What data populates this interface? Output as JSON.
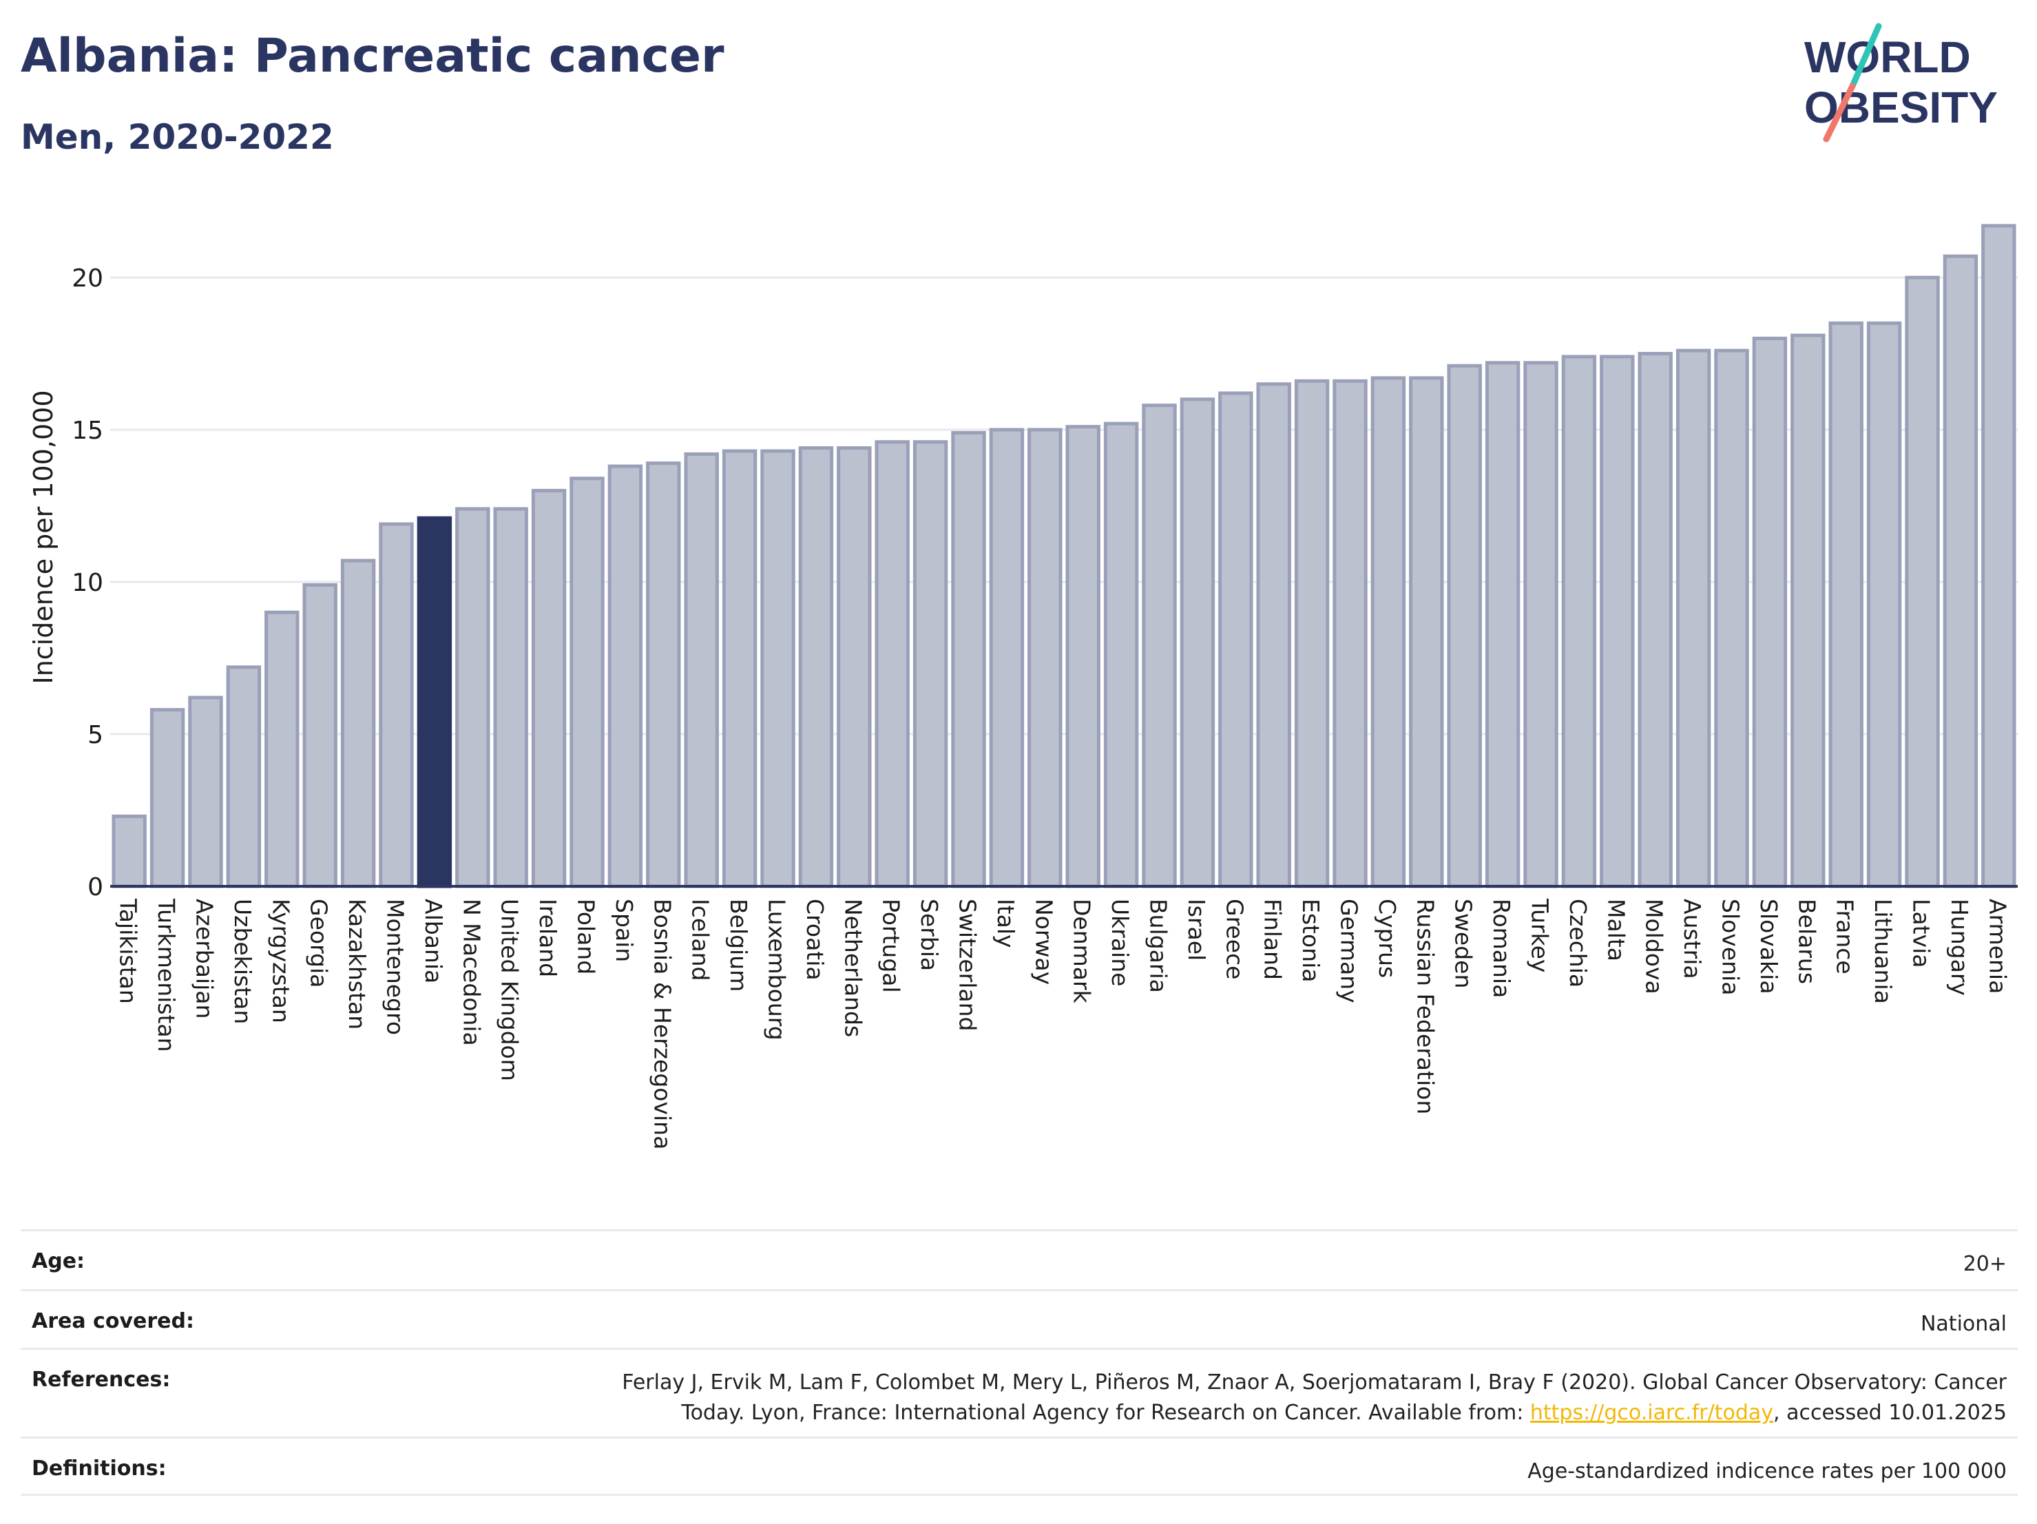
{
  "header": {
    "title": "Albania: Pancreatic cancer",
    "subtitle": "Men, 2020-2022",
    "logo_line1": "WORLD",
    "logo_line2": "OBESITY"
  },
  "colors": {
    "highlight": "#2b3562",
    "bar_fill": "#bcc1d0",
    "bar_stroke": "#9aa0b8",
    "title": "#2b3562",
    "link": "#f2b705",
    "logo_teal": "#2ec4b6",
    "logo_coral": "#f0776a"
  },
  "chart_data": {
    "type": "bar",
    "title": "",
    "xlabel": "",
    "ylabel": "Incidence per 100,000",
    "ylim": [
      0,
      22
    ],
    "yticks": [
      0,
      5,
      10,
      15,
      20
    ],
    "grid": true,
    "highlight": "Albania",
    "categories": [
      "Tajikistan",
      "Turkmenistan",
      "Azerbaijan",
      "Uzbekistan",
      "Kyrgyzstan",
      "Georgia",
      "Kazakhstan",
      "Montenegro",
      "Albania",
      "N Macedonia",
      "United Kingdom",
      "Ireland",
      "Poland",
      "Spain",
      "Bosnia & Herzegovina",
      "Iceland",
      "Belgium",
      "Luxembourg",
      "Croatia",
      "Netherlands",
      "Portugal",
      "Serbia",
      "Switzerland",
      "Italy",
      "Norway",
      "Denmark",
      "Ukraine",
      "Bulgaria",
      "Israel",
      "Greece",
      "Finland",
      "Estonia",
      "Germany",
      "Cyprus",
      "Russian Federation",
      "Sweden",
      "Romania",
      "Turkey",
      "Czechia",
      "Malta",
      "Moldova",
      "Austria",
      "Slovenia",
      "Slovakia",
      "Belarus",
      "France",
      "Lithuania",
      "Latvia",
      "Hungary",
      "Armenia"
    ],
    "values": [
      2.3,
      5.8,
      6.2,
      7.2,
      9.0,
      9.9,
      10.7,
      11.9,
      12.1,
      12.4,
      12.4,
      13.0,
      13.4,
      13.8,
      13.9,
      14.2,
      14.3,
      14.3,
      14.4,
      14.4,
      14.6,
      14.6,
      14.9,
      15.0,
      15.0,
      15.1,
      15.2,
      15.8,
      16.0,
      16.2,
      16.5,
      16.6,
      16.6,
      16.7,
      16.7,
      17.1,
      17.2,
      17.2,
      17.4,
      17.4,
      17.5,
      17.6,
      17.6,
      18.0,
      18.1,
      18.5,
      18.5,
      20.0,
      20.7,
      21.7
    ]
  },
  "info": {
    "age_label": "Age:",
    "age_value": "20+",
    "area_label": "Area covered:",
    "area_value": "National",
    "references_label": "References:",
    "references_line1": "Ferlay J, Ervik M, Lam F, Colombet M, Mery L, Piñeros M, Znaor A, Soerjomataram I, Bray F (2020). Global Cancer Observatory: Cancer",
    "references_line2_pre": "Today. Lyon, France: International Agency for Research on Cancer. Available from:",
    "references_link": "https://gco.iarc.fr/today",
    "references_line2_post": ", accessed 10.01.2025",
    "definitions_label": "Definitions:",
    "definitions_value": "Age-standardized indicence rates per 100 000"
  }
}
